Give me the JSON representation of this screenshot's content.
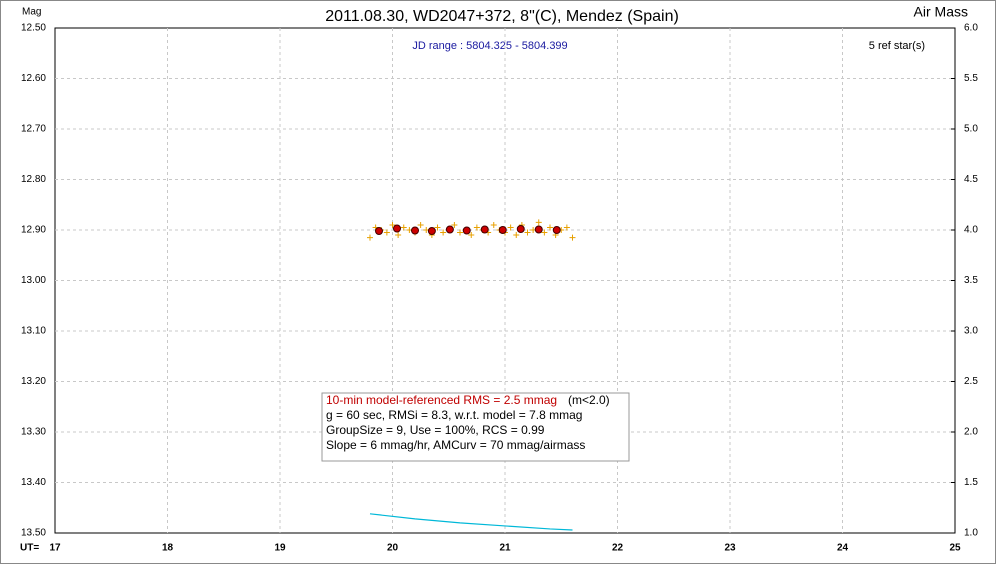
{
  "chart_data": {
    "type": "scatter",
    "title": "2011.08.30, WD2047+372, 8\"(C), Mendez (Spain)",
    "y_label": "Mag",
    "y2_label": "Air Mass",
    "x_label": "UT=",
    "jd_range": "JD range : 5804.325 - 5804.399",
    "ref_stars": "5 ref star(s)",
    "stats": {
      "rms": "10-min model-referenced RMS = 2.5 mmag",
      "rms_note": "(m<2.0)",
      "lines": [
        "g = 60 sec, RMSi = 8.3, w.r.t. model = 7.8 mmag",
        "GroupSize = 9, Use = 100%, RCS = 0.99",
        "Slope = 6 mmag/hr, AMCurv = 70 mmag/airmass"
      ]
    },
    "xlim": [
      17,
      25
    ],
    "xticks": [
      17,
      18,
      19,
      20,
      21,
      22,
      23,
      24,
      25
    ],
    "ylim": [
      13.5,
      12.5
    ],
    "yticks": [
      {
        "value": 12.5,
        "label": "12.50"
      },
      {
        "value": 12.6,
        "label": "12.60"
      },
      {
        "value": 12.7,
        "label": "12.70"
      },
      {
        "value": 12.8,
        "label": "12.80"
      },
      {
        "value": 12.9,
        "label": "12.90"
      },
      {
        "value": 13.0,
        "label": "13.00"
      },
      {
        "value": 13.1,
        "label": "13.10"
      },
      {
        "value": 13.2,
        "label": "13.20"
      },
      {
        "value": 13.3,
        "label": "13.30"
      },
      {
        "value": 13.4,
        "label": "13.40"
      },
      {
        "value": 13.5,
        "label": "13.50"
      }
    ],
    "y2lim": [
      1.0,
      6.0
    ],
    "y2ticks": [
      {
        "value": 6.0,
        "label": "6.0"
      },
      5.5,
      {
        "value": 5.0,
        "label": "5.0"
      },
      4.5,
      {
        "value": 4.0,
        "label": "4.0"
      },
      3.5,
      {
        "value": 3.0,
        "label": "3.0"
      },
      2.5,
      {
        "value": 2.0,
        "label": "2.0"
      },
      1.5,
      {
        "value": 1.0,
        "label": "1.0"
      }
    ],
    "grid": true,
    "series": [
      {
        "marker": "plus",
        "color": "#e8a000",
        "x": [
          19.8,
          19.85,
          19.9,
          19.95,
          20.0,
          20.05,
          20.1,
          20.15,
          20.2,
          20.25,
          20.3,
          20.35,
          20.4,
          20.45,
          20.5,
          20.55,
          20.6,
          20.65,
          20.7,
          20.75,
          20.8,
          20.85,
          20.9,
          20.95,
          21.0,
          21.05,
          21.1,
          21.15,
          21.2,
          21.25,
          21.3,
          21.35,
          21.4,
          21.45,
          21.5,
          21.55,
          21.6
        ],
        "values": [
          12.915,
          12.895,
          12.9,
          12.905,
          12.89,
          12.91,
          12.895,
          12.9,
          12.905,
          12.89,
          12.9,
          12.91,
          12.895,
          12.905,
          12.9,
          12.89,
          12.905,
          12.9,
          12.91,
          12.895,
          12.9,
          12.905,
          12.89,
          12.9,
          12.905,
          12.895,
          12.91,
          12.89,
          12.905,
          12.9,
          12.885,
          12.905,
          12.895,
          12.91,
          12.9,
          12.895,
          12.915
        ]
      },
      {
        "marker": "circle",
        "color": "#cc0000",
        "x": [
          19.88,
          20.04,
          20.2,
          20.35,
          20.51,
          20.66,
          20.82,
          20.98,
          21.14,
          21.3,
          21.46
        ],
        "values": [
          12.902,
          12.897,
          12.901,
          12.902,
          12.899,
          12.901,
          12.899,
          12.9,
          12.898,
          12.899,
          12.9
        ]
      },
      {
        "marker": "line",
        "color": "#00b8d8",
        "axis": "y2",
        "x": [
          19.8,
          20.2,
          20.6,
          21.0,
          21.4,
          21.6
        ],
        "values": [
          1.19,
          1.14,
          1.1,
          1.07,
          1.04,
          1.03
        ]
      }
    ]
  }
}
